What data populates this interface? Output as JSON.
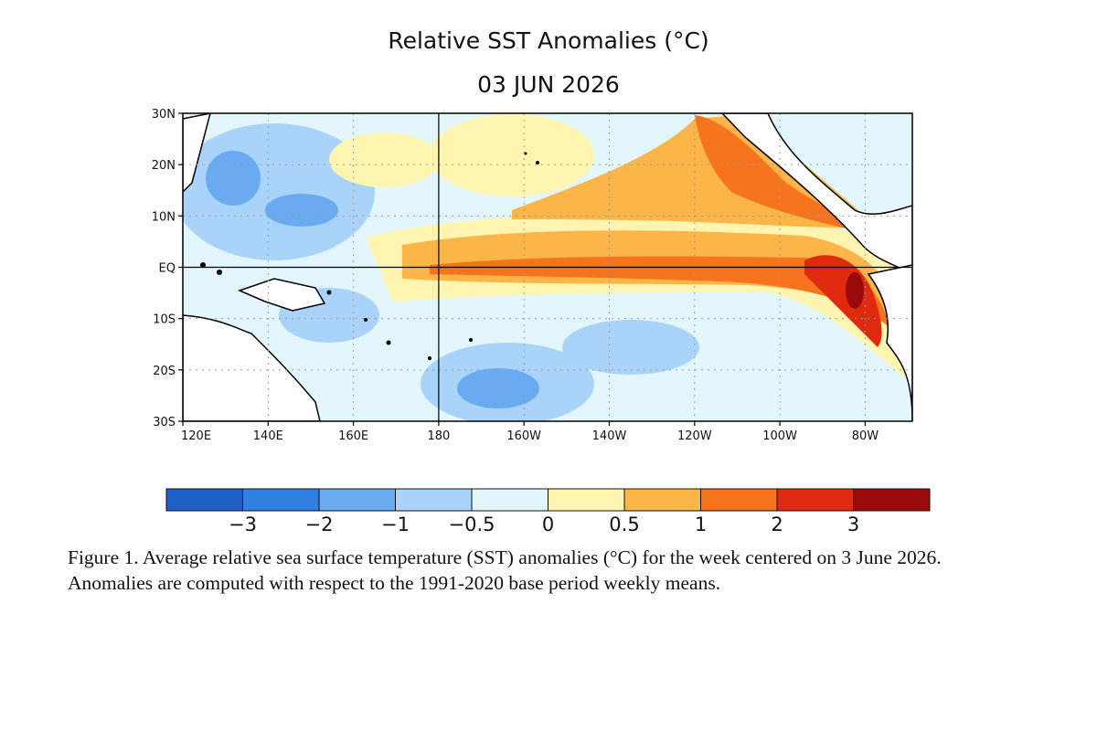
{
  "title": "Relative SST Anomalies (°C)",
  "subtitle": "03 JUN 2026",
  "y_axis_labels": [
    "30N",
    "20N",
    "10N",
    "EQ",
    "10S",
    "20S",
    "30S"
  ],
  "x_axis_labels": [
    "120E",
    "140E",
    "160E",
    "180",
    "160W",
    "140W",
    "120W",
    "100W",
    "80W"
  ],
  "colorbar": {
    "colors": [
      "#1f5fc8",
      "#2f80e0",
      "#6aaaf0",
      "#a9d3f8",
      "#e2f6fc",
      "#fff5b0",
      "#fcb548",
      "#f7741f",
      "#e02a10",
      "#9a0a0a"
    ],
    "labels": [
      "−3",
      "−2",
      "−1",
      "−0.5",
      "0",
      "0.5",
      "1",
      "2",
      "3"
    ]
  },
  "caption": "Figure 1. Average relative sea surface temperature (SST) anomalies (°C) for the week centered on 3 June 2026.  Anomalies are computed with respect to the 1991-2020 base period weekly means."
}
